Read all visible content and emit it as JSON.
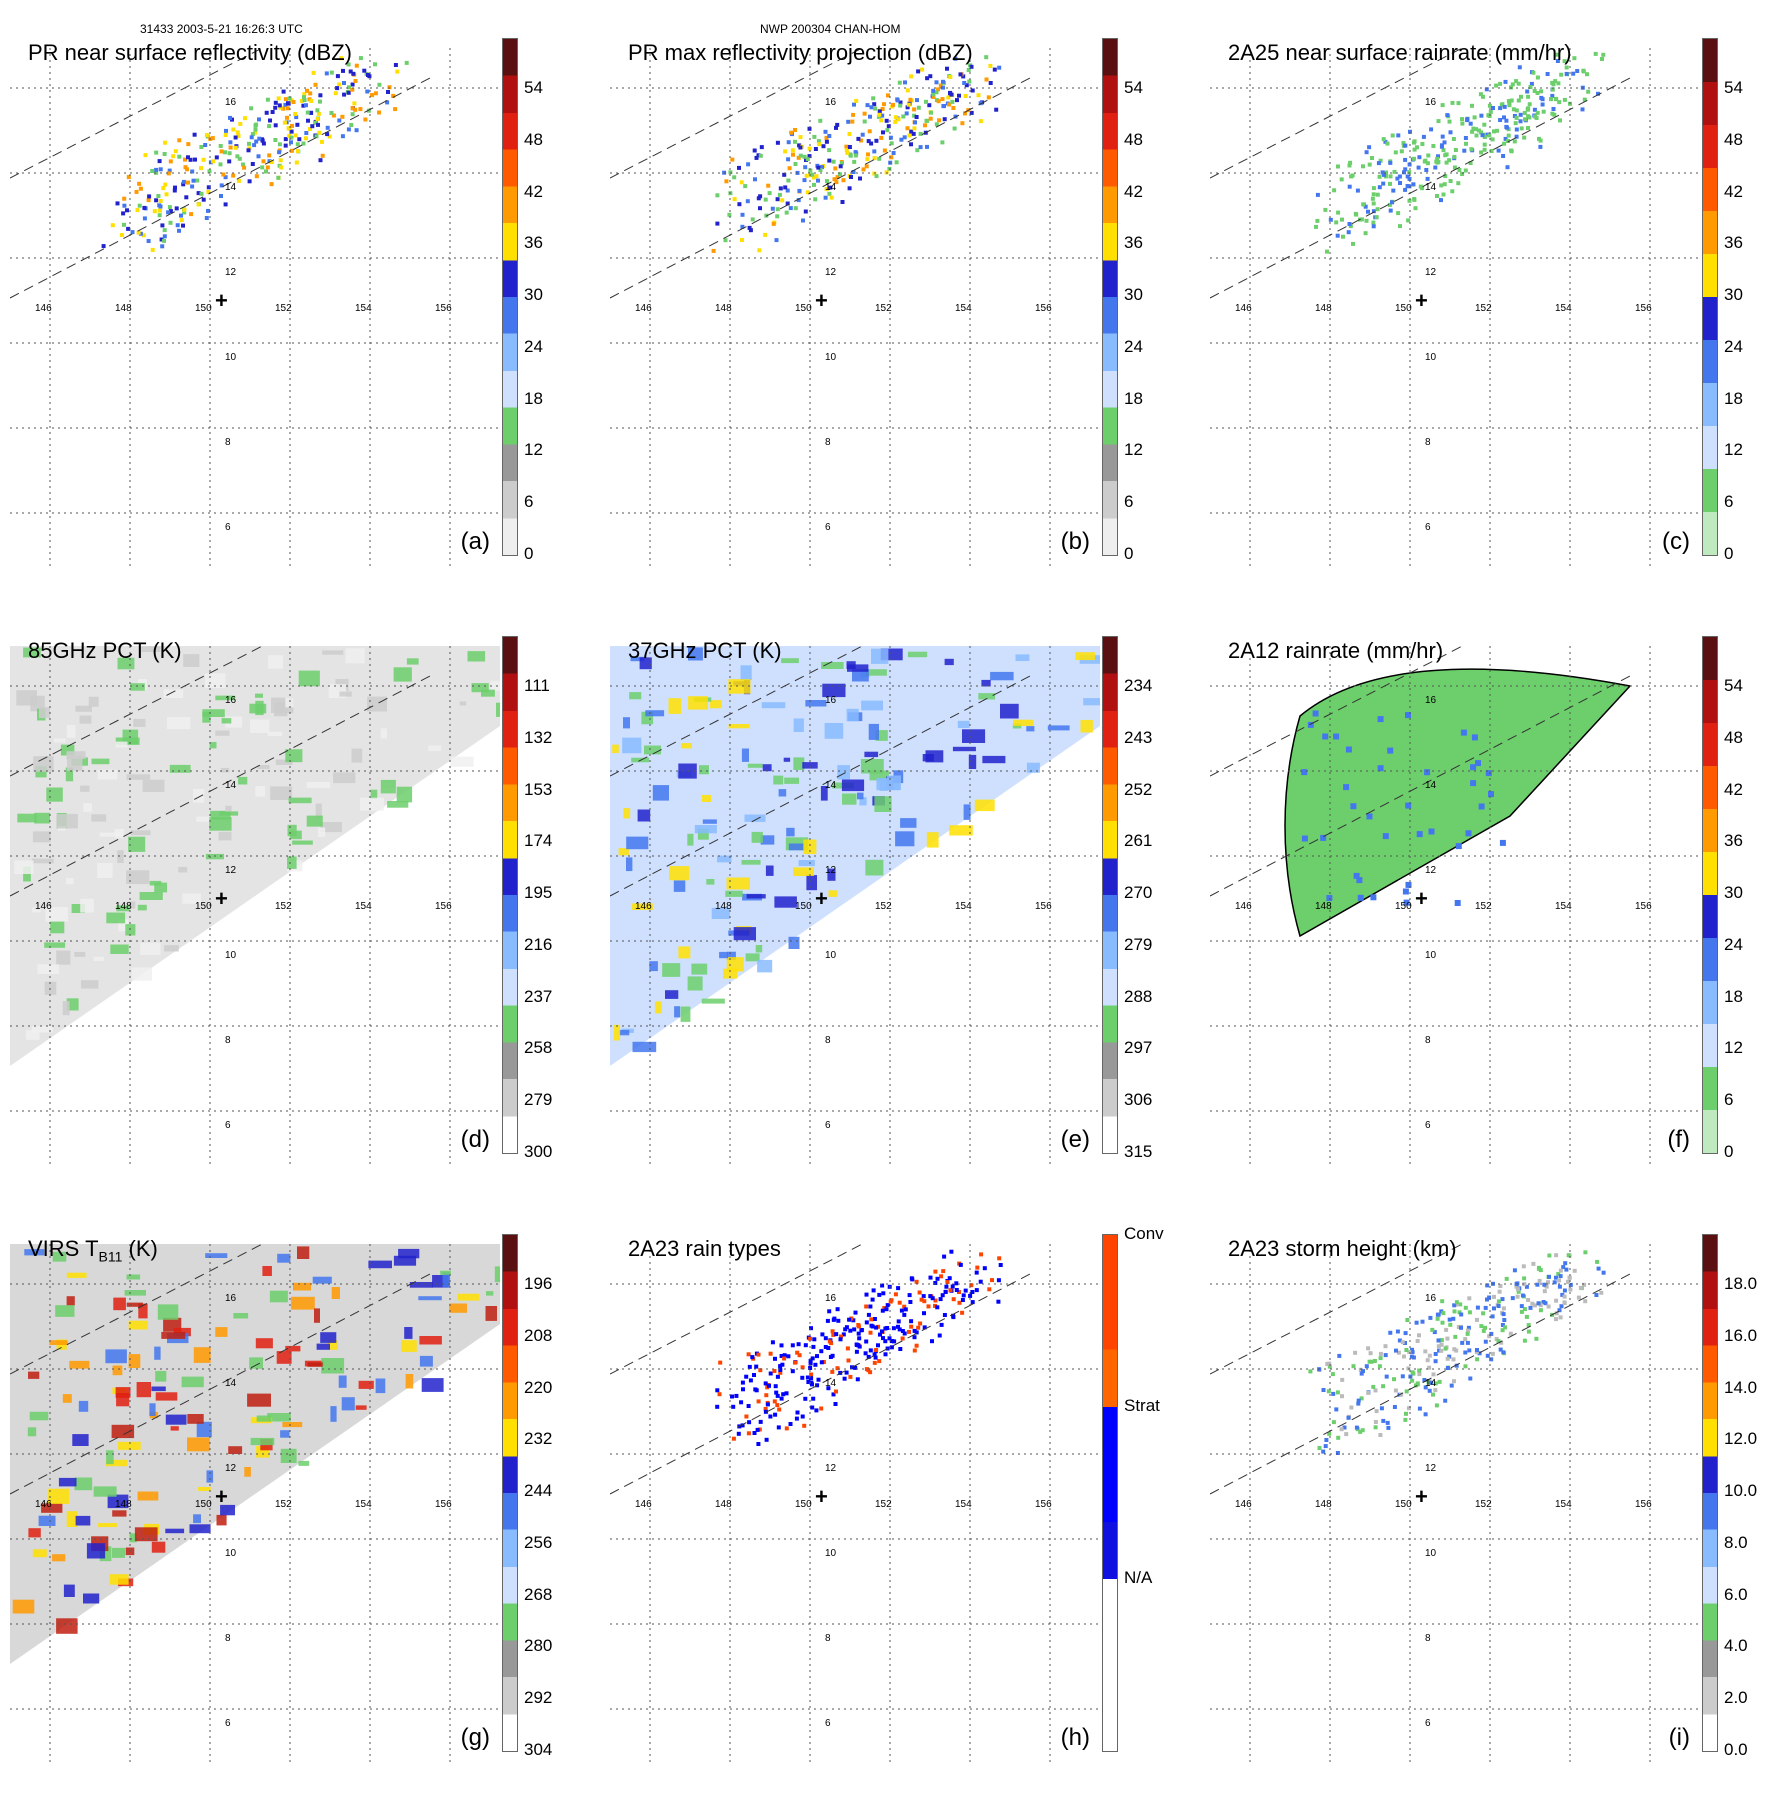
{
  "header": {
    "left": "31433 2003-5-21 16:26:3 UTC",
    "center": "NWP 200304 CHAN-HOM"
  },
  "map_labels": {
    "longitudes": [
      "146",
      "148",
      "150",
      "152",
      "154",
      "156"
    ],
    "latitudes": [
      "16",
      "14",
      "12",
      "10",
      "8",
      "6"
    ]
  },
  "panels": [
    {
      "id": "a",
      "title": "PR near surface reflectivity (dBZ)",
      "label": "(a)",
      "colorbar": [
        "54",
        "48",
        "42",
        "36",
        "30",
        "24",
        "18",
        "12",
        "6",
        "0"
      ],
      "scheme": "refl",
      "colors": {
        "green": "#6ccf6c",
        "blue": "#3355dd",
        "yellow": "#ffe000",
        "orange": "#ff8a00"
      }
    },
    {
      "id": "b",
      "title": "PR max reflectivity projection (dBZ)",
      "label": "(b)",
      "colorbar": [
        "54",
        "48",
        "42",
        "36",
        "30",
        "24",
        "18",
        "12",
        "6",
        "0"
      ],
      "scheme": "refl"
    },
    {
      "id": "c",
      "title": "2A25 near surface rainrate (mm/hr)",
      "label": "(c)",
      "colorbar": [
        "54",
        "48",
        "42",
        "36",
        "30",
        "24",
        "18",
        "12",
        "6",
        "0"
      ],
      "scheme": "rain"
    },
    {
      "id": "d",
      "title": "85GHz PCT (K)",
      "label": "(d)",
      "colorbar": [
        "111",
        "132",
        "153",
        "174",
        "195",
        "216",
        "237",
        "258",
        "279",
        "300"
      ],
      "scheme": "pct"
    },
    {
      "id": "e",
      "title": "37GHz PCT (K)",
      "label": "(e)",
      "colorbar": [
        "234",
        "243",
        "252",
        "261",
        "270",
        "279",
        "288",
        "297",
        "306",
        "315"
      ],
      "scheme": "pct"
    },
    {
      "id": "f",
      "title": "2A12 rainrate (mm/hr)",
      "label": "(f)",
      "colorbar": [
        "54",
        "48",
        "42",
        "36",
        "30",
        "24",
        "18",
        "12",
        "6",
        "0"
      ],
      "scheme": "rain"
    },
    {
      "id": "g",
      "title_main": "VIRS T",
      "title_sub": "B11",
      "title_end": " (K)",
      "label": "(g)",
      "colorbar": [
        "196",
        "208",
        "220",
        "232",
        "244",
        "256",
        "268",
        "280",
        "292",
        "304"
      ],
      "scheme": "pct"
    },
    {
      "id": "h",
      "title": "2A23 rain types",
      "label": "(h)",
      "colorbar": [
        "Conv",
        "Strat",
        "N/A"
      ],
      "scheme": "types"
    },
    {
      "id": "i",
      "title": "2A23 storm height (km)",
      "label": "(i)",
      "colorbar": [
        "18.0",
        "16.0",
        "14.0",
        "12.0",
        "10.0",
        "8.0",
        "6.0",
        "4.0",
        "2.0",
        "0.0"
      ],
      "scheme": "height"
    }
  ]
}
